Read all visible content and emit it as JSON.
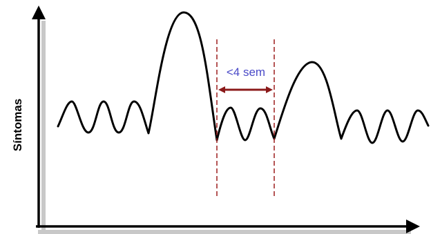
{
  "diagram": {
    "y_axis_label": "Síntomas",
    "interval_label": "<4 sem",
    "colors": {
      "curve": "#000000",
      "axis": "#000000",
      "axis_shadow": "#c8c8c8",
      "marker_lines": "#9b1b1b",
      "arrow": "#8b1a1a",
      "label": "#4a4ac8"
    }
  }
}
